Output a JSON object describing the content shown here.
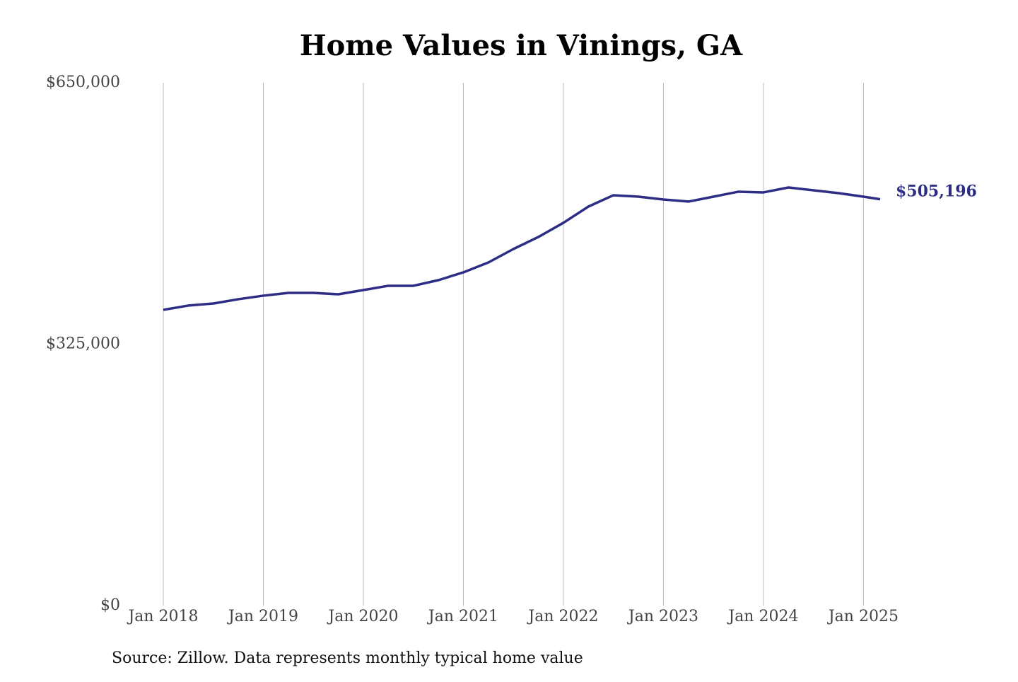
{
  "chart_data": {
    "type": "line",
    "title": "Home Values in Vinings, GA",
    "source": "Source: Zillow. Data represents monthly typical home value",
    "x": [
      "2018-01",
      "2018-04",
      "2018-07",
      "2018-10",
      "2019-01",
      "2019-04",
      "2019-07",
      "2019-10",
      "2020-01",
      "2020-04",
      "2020-07",
      "2020-10",
      "2021-01",
      "2021-04",
      "2021-07",
      "2021-10",
      "2022-01",
      "2022-04",
      "2022-07",
      "2022-10",
      "2023-01",
      "2023-04",
      "2023-07",
      "2023-10",
      "2024-01",
      "2024-04",
      "2024-07",
      "2024-10",
      "2025-01",
      "2025-03"
    ],
    "series": [
      {
        "name": "Vinings, GA",
        "color": "#2e2d86",
        "values": [
          367700,
          373000,
          375600,
          380900,
          385300,
          388800,
          388800,
          387000,
          392300,
          397600,
          397600,
          404600,
          414300,
          426600,
          443300,
          458300,
          475900,
          496100,
          510200,
          508400,
          504900,
          502300,
          508400,
          514600,
          513700,
          519800,
          516300,
          512800,
          508400,
          505196
        ],
        "value_labels": [
          null,
          null,
          null,
          null,
          null,
          null,
          null,
          null,
          null,
          null,
          null,
          null,
          null,
          null,
          null,
          null,
          null,
          null,
          null,
          null,
          null,
          null,
          null,
          null,
          null,
          null,
          null,
          null,
          null,
          "$505,196"
        ]
      }
    ],
    "xlim": [
      "2018-01",
      "2025-03"
    ],
    "xticks": [
      {
        "value": "2018-01",
        "label": "Jan 2018"
      },
      {
        "value": "2019-01",
        "label": "Jan 2019"
      },
      {
        "value": "2020-01",
        "label": "Jan 2020"
      },
      {
        "value": "2021-01",
        "label": "Jan 2021"
      },
      {
        "value": "2022-01",
        "label": "Jan 2022"
      },
      {
        "value": "2023-01",
        "label": "Jan 2023"
      },
      {
        "value": "2024-01",
        "label": "Jan 2024"
      },
      {
        "value": "2025-01",
        "label": "Jan 2025"
      }
    ],
    "ylim": [
      0,
      650000
    ],
    "yticks": [
      {
        "value": 0,
        "label": "$0"
      },
      {
        "value": 325000,
        "label": "$325,000"
      },
      {
        "value": 650000,
        "label": "$650,000"
      }
    ],
    "grid": "x"
  }
}
